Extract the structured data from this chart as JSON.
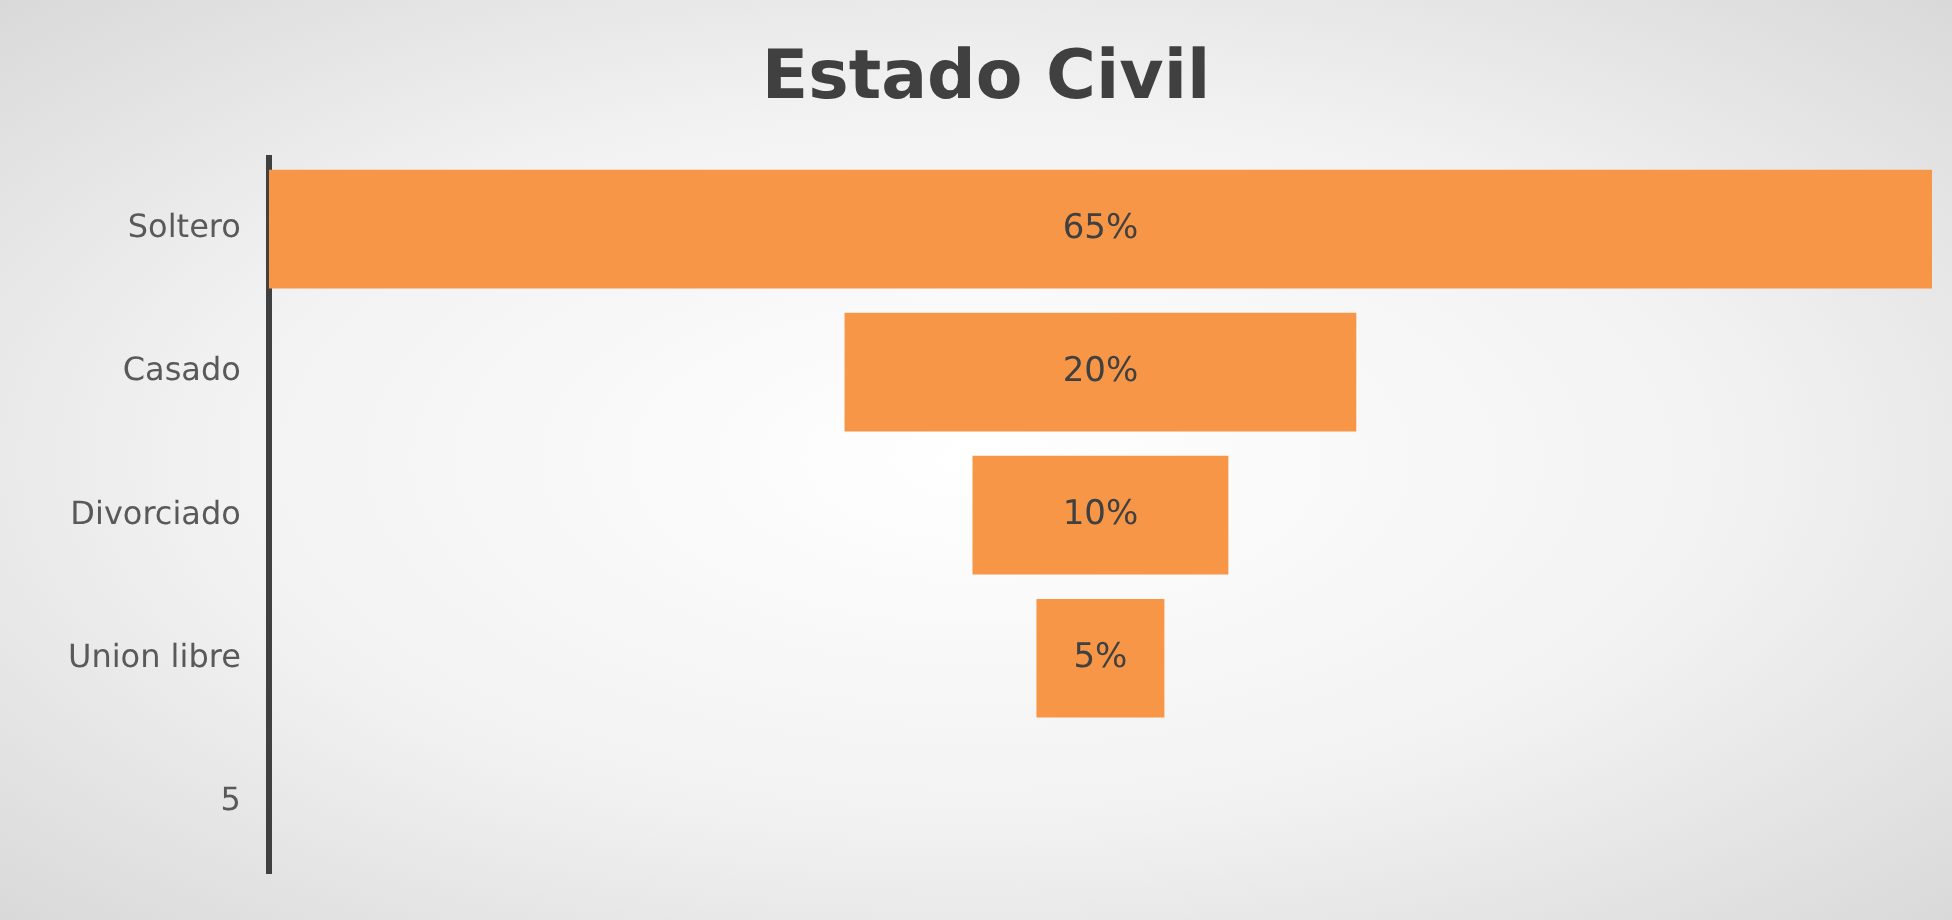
{
  "chart_data": {
    "type": "other",
    "title": "Estado Civil",
    "categories": [
      "Soltero",
      "Casado",
      "Divorciado",
      "Union libre",
      "5"
    ],
    "values": [
      65,
      20,
      10,
      5,
      null
    ],
    "value_labels": [
      "65%",
      "20%",
      "10%",
      "5%",
      null
    ],
    "color": "#f79646"
  }
}
